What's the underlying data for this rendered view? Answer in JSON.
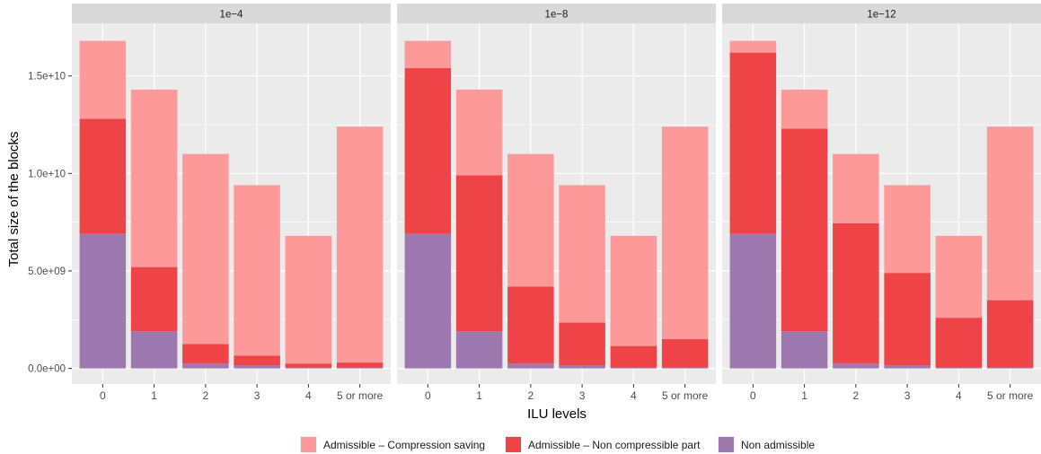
{
  "chart_data": {
    "type": "bar",
    "stacked": true,
    "faceted": true,
    "xlabel": "ILU levels",
    "ylabel": "Total size of the blocks",
    "categories": [
      "0",
      "1",
      "2",
      "3",
      "4",
      "5 or more"
    ],
    "y_ticks": [
      0,
      5000000000,
      10000000000,
      15000000000
    ],
    "y_tick_labels": [
      "0.0e+00",
      "5.0e+09",
      "1.0e+10",
      "1.5e+10"
    ],
    "ylim": [
      -800000000,
      17700000000
    ],
    "grid": true,
    "legend_position": "bottom",
    "series": [
      {
        "key": "non_admissible",
        "name": "Non admissible",
        "color": "#9e79b0"
      },
      {
        "key": "non_compressible",
        "name": "Admissible – Non compressible part",
        "color": "#ef4447"
      },
      {
        "key": "compression_saving",
        "name": "Admissible – Compression saving",
        "color": "#fe999a"
      }
    ],
    "legend_order": [
      "compression_saving",
      "non_compressible",
      "non_admissible"
    ],
    "facets": [
      {
        "label": "1e−4",
        "non_admissible": [
          6900000000.0,
          1900000000.0,
          250000000.0,
          150000000.0,
          50000000.0,
          50000000.0
        ],
        "non_compressible": [
          5900000000.0,
          3300000000.0,
          1000000000.0,
          500000000.0,
          200000000.0,
          250000000.0
        ],
        "compression_saving": [
          4000000000.0,
          9100000000.0,
          9750000000.0,
          8750000000.0,
          6550000000.0,
          12100000000.0
        ]
      },
      {
        "label": "1e−8",
        "non_admissible": [
          6900000000.0,
          1900000000.0,
          250000000.0,
          150000000.0,
          50000000.0,
          50000000.0
        ],
        "non_compressible": [
          8500000000.0,
          8000000000.0,
          3950000000.0,
          2200000000.0,
          1100000000.0,
          1450000000.0
        ],
        "compression_saving": [
          1400000000.0,
          4400000000.0,
          6800000000.0,
          7050000000.0,
          5650000000.0,
          10900000000.0
        ]
      },
      {
        "label": "1e−12",
        "non_admissible": [
          6900000000.0,
          1900000000.0,
          250000000.0,
          150000000.0,
          50000000.0,
          50000000.0
        ],
        "non_compressible": [
          9300000000.0,
          10400000000.0,
          7200000000.0,
          4750000000.0,
          2550000000.0,
          3450000000.0
        ],
        "compression_saving": [
          600000000.0,
          2000000000.0,
          3550000000.0,
          4500000000.0,
          4200000000.0,
          8900000000.0
        ]
      }
    ]
  }
}
